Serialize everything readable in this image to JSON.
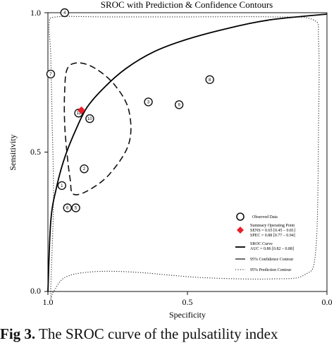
{
  "chart_data": {
    "type": "scatter",
    "title": "SROC with Prediction & Confidence Contours",
    "xlabel": "Specificity",
    "ylabel": "Sensitivity",
    "x_reversed": true,
    "xlim": [
      0.0,
      1.0
    ],
    "ylim": [
      0.0,
      1.0
    ],
    "x_tick_labels": [
      "1.0",
      "0.5",
      "0.0"
    ],
    "y_tick_labels": [
      "0.0",
      "0.5",
      "1.0"
    ],
    "grid": false,
    "legend_placement": "bottom-right",
    "observed": [
      {
        "label": "1",
        "spec": 0.95,
        "sens": 0.38
      },
      {
        "label": "2",
        "spec": 0.87,
        "sens": 0.44
      },
      {
        "label": "3",
        "spec": 0.64,
        "sens": 0.68
      },
      {
        "label": "4",
        "spec": 0.94,
        "sens": 1.0
      },
      {
        "label": "5",
        "spec": 0.9,
        "sens": 0.3
      },
      {
        "label": "6",
        "spec": 0.93,
        "sens": 0.3
      },
      {
        "label": "7",
        "spec": 0.99,
        "sens": 0.78
      },
      {
        "label": "8",
        "spec": 0.42,
        "sens": 0.76
      },
      {
        "label": "9",
        "spec": 0.53,
        "sens": 0.67
      },
      {
        "label": "10",
        "spec": 0.85,
        "sens": 0.62
      },
      {
        "label": "11",
        "spec": 0.89,
        "sens": 0.64
      }
    ],
    "summary_point": {
      "spec": 0.88,
      "sens": 0.65
    },
    "sroc_curve": [
      [
        1.0,
        0.0
      ],
      [
        0.99,
        0.25
      ],
      [
        0.97,
        0.37
      ],
      [
        0.94,
        0.48
      ],
      [
        0.9,
        0.58
      ],
      [
        0.86,
        0.66
      ],
      [
        0.8,
        0.73
      ],
      [
        0.72,
        0.8
      ],
      [
        0.62,
        0.86
      ],
      [
        0.5,
        0.905
      ],
      [
        0.35,
        0.945
      ],
      [
        0.2,
        0.975
      ],
      [
        0.0,
        0.995
      ]
    ],
    "confidence_contour": [
      [
        0.91,
        0.35
      ],
      [
        0.86,
        0.36
      ],
      [
        0.78,
        0.42
      ],
      [
        0.71,
        0.53
      ],
      [
        0.71,
        0.65
      ],
      [
        0.76,
        0.74
      ],
      [
        0.83,
        0.8
      ],
      [
        0.89,
        0.82
      ],
      [
        0.93,
        0.8
      ],
      [
        0.94,
        0.72
      ],
      [
        0.94,
        0.6
      ],
      [
        0.93,
        0.48
      ],
      [
        0.92,
        0.4
      ]
    ],
    "prediction_contour": [
      [
        0.99,
        0.0
      ],
      [
        0.98,
        0.32
      ],
      [
        0.985,
        0.62
      ],
      [
        0.99,
        0.85
      ],
      [
        0.995,
        0.96
      ],
      [
        0.97,
        0.985
      ],
      [
        0.8,
        0.985
      ],
      [
        0.5,
        0.985
      ],
      [
        0.2,
        0.985
      ],
      [
        0.05,
        0.975
      ],
      [
        0.03,
        0.9
      ],
      [
        0.03,
        0.6
      ],
      [
        0.04,
        0.15
      ],
      [
        0.08,
        0.06
      ],
      [
        0.2,
        0.045
      ],
      [
        0.45,
        0.05
      ],
      [
        0.7,
        0.07
      ],
      [
        0.85,
        0.07
      ],
      [
        0.94,
        0.05
      ],
      [
        0.98,
        0.0
      ]
    ]
  },
  "legend": {
    "observed": "Observed Data",
    "summary_title": "Summary Operating Point",
    "summary_sens": "SENS = 0.65 [0.45 – 0.81]",
    "summary_spec": "SPEC = 0.88 [0.77 – 0.94]",
    "sroc_title": "SROC Curve",
    "sroc_auc": "AUC = 0.86 [0.82 – 0.88]",
    "confidence": "95% Confidence Contour",
    "prediction": "95% Prediction Contour"
  },
  "caption": {
    "prefix": "Fig 3.",
    "text": " The SROC curve of the pulsatility index"
  },
  "colors": {
    "summary_point": "#e8202a",
    "ink": "#111111"
  }
}
